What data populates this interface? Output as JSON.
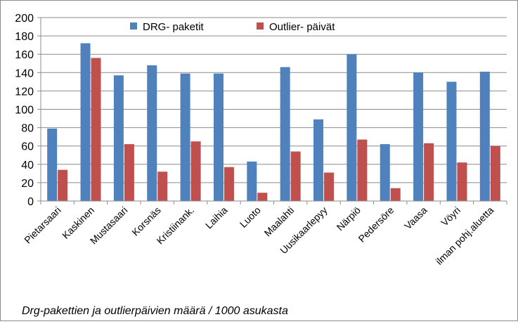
{
  "chart_data": {
    "type": "bar",
    "categories": [
      "Pietarsaari",
      "Kaskinen",
      "Mustasaari",
      "Korsnäs",
      "Kristiinank.",
      "Laihia",
      "Luoto",
      "Maalahti",
      "Uusikaarlepyy",
      "Närpiö",
      "Pedersöre",
      "Vaasa",
      "Vöyri",
      "ilman pohj.aluetta"
    ],
    "series": [
      {
        "name": "DRG- paketit",
        "color": "#4f81bd",
        "values": [
          79,
          172,
          137,
          148,
          139,
          139,
          43,
          146,
          89,
          160,
          62,
          140,
          130,
          141
        ]
      },
      {
        "name": "Outlier- päivät",
        "color": "#c0504d",
        "values": [
          34,
          156,
          62,
          32,
          65,
          37,
          9,
          54,
          31,
          67,
          14,
          63,
          42,
          60
        ]
      }
    ],
    "title": "",
    "xlabel": "",
    "ylabel": "",
    "ylim": [
      0,
      200
    ],
    "yticks": [
      0,
      20,
      40,
      60,
      80,
      100,
      120,
      140,
      160,
      180,
      200
    ],
    "grid": true,
    "legend": "top-center"
  },
  "caption": "Drg-pakettien ja outlierpäivien määrä / 1000 asukasta"
}
